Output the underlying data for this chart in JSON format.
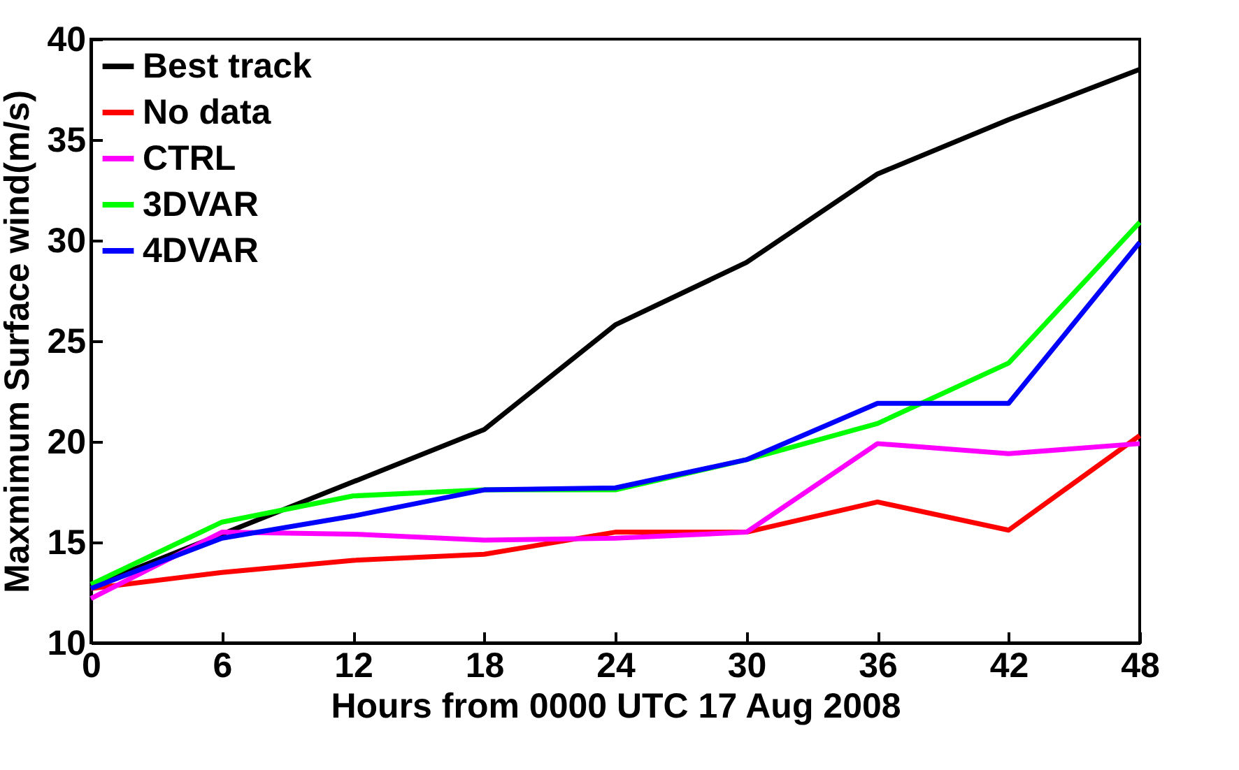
{
  "chart_data": {
    "type": "line",
    "xlabel": "Hours from 0000 UTC 17 Aug 2008",
    "ylabel": "Maxmimum Surface wind(m/s)",
    "x": [
      0,
      6,
      12,
      18,
      24,
      30,
      36,
      42,
      48
    ],
    "xlim": [
      0,
      48
    ],
    "xticks": [
      0,
      6,
      12,
      18,
      24,
      30,
      36,
      42,
      48
    ],
    "ylim": [
      10,
      40
    ],
    "yticks": [
      10,
      15,
      20,
      25,
      30,
      35,
      40
    ],
    "grid": false,
    "legend": "top left",
    "marker": "none",
    "line_style": "solid",
    "series": [
      {
        "name": "Best track",
        "color": "#000000",
        "values": [
          12.8,
          15.4,
          18.0,
          20.6,
          25.8,
          28.9,
          33.3,
          36.0,
          38.5
        ]
      },
      {
        "name": "No data",
        "color": "#ff0000",
        "values": [
          12.7,
          13.5,
          14.1,
          14.4,
          15.5,
          15.5,
          17.0,
          15.6,
          20.3
        ]
      },
      {
        "name": "CTRL",
        "color": "#ff00ff",
        "values": [
          12.2,
          15.5,
          15.4,
          15.1,
          15.2,
          15.5,
          19.9,
          19.4,
          19.9
        ]
      },
      {
        "name": "3DVAR",
        "color": "#00ff00",
        "values": [
          12.9,
          16.0,
          17.3,
          17.6,
          17.6,
          19.1,
          20.9,
          23.9,
          30.9
        ]
      },
      {
        "name": "4DVAR",
        "color": "#0000ff",
        "values": [
          12.7,
          15.2,
          16.3,
          17.6,
          17.7,
          19.1,
          21.9,
          21.9,
          29.9
        ]
      }
    ]
  }
}
